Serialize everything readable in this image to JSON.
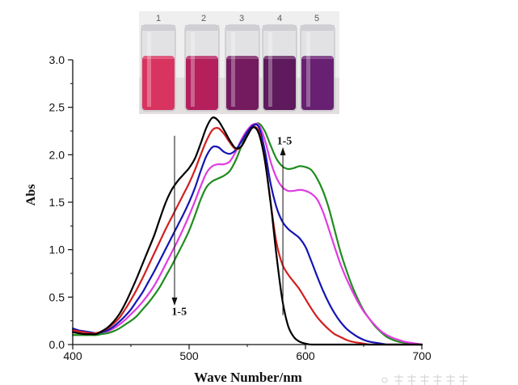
{
  "inset": {
    "vials": [
      {
        "label": "1",
        "liquid_color": "#d8345f"
      },
      {
        "label": "2",
        "liquid_color": "#b41f5c"
      },
      {
        "label": "3",
        "liquid_color": "#741a5e"
      },
      {
        "label": "4",
        "liquid_color": "#5e1a5c"
      },
      {
        "label": "5",
        "liquid_color": "#682072"
      }
    ]
  },
  "chart_data": {
    "type": "line",
    "xlabel": "Wave Number/nm",
    "ylabel": "Abs",
    "xlim": [
      400,
      700
    ],
    "ylim": [
      0,
      3.0
    ],
    "xticks": [
      "400",
      "500",
      "600",
      "700"
    ],
    "yticks": [
      "0.0",
      "0.5",
      "1.0",
      "1.5",
      "2.0",
      "2.5",
      "3.0"
    ],
    "grid": false,
    "x": [
      400,
      405,
      410,
      415,
      420,
      425,
      430,
      435,
      440,
      445,
      450,
      455,
      460,
      465,
      470,
      475,
      480,
      485,
      490,
      495,
      500,
      505,
      510,
      515,
      520,
      525,
      530,
      535,
      540,
      545,
      550,
      555,
      560,
      565,
      570,
      575,
      580,
      585,
      590,
      595,
      600,
      605,
      610,
      615,
      620,
      625,
      630,
      635,
      640,
      645,
      650,
      655,
      660,
      665,
      670,
      675,
      680,
      685,
      690,
      695,
      700
    ],
    "series": [
      {
        "color": "#000000",
        "values": [
          0.13,
          0.12,
          0.11,
          0.11,
          0.11,
          0.14,
          0.18,
          0.24,
          0.32,
          0.43,
          0.56,
          0.7,
          0.85,
          1.0,
          1.15,
          1.33,
          1.5,
          1.63,
          1.72,
          1.79,
          1.86,
          1.96,
          2.12,
          2.29,
          2.39,
          2.36,
          2.26,
          2.15,
          2.07,
          2.09,
          2.2,
          2.29,
          2.22,
          1.95,
          1.5,
          0.95,
          0.48,
          0.2,
          0.08,
          0.03,
          0.01,
          0,
          0,
          0,
          0,
          0,
          0,
          0,
          0,
          0,
          0,
          0,
          0,
          0,
          0,
          0,
          0,
          0,
          0,
          0,
          0
        ]
      },
      {
        "color": "#d21f1f",
        "values": [
          0.15,
          0.14,
          0.13,
          0.12,
          0.12,
          0.14,
          0.17,
          0.22,
          0.28,
          0.37,
          0.47,
          0.58,
          0.7,
          0.83,
          0.96,
          1.09,
          1.22,
          1.34,
          1.46,
          1.58,
          1.7,
          1.84,
          2.0,
          2.15,
          2.26,
          2.28,
          2.22,
          2.13,
          2.06,
          2.09,
          2.2,
          2.29,
          2.24,
          1.95,
          1.5,
          1.08,
          0.85,
          0.74,
          0.66,
          0.58,
          0.48,
          0.38,
          0.29,
          0.22,
          0.16,
          0.11,
          0.08,
          0.05,
          0.03,
          0.02,
          0.01,
          0,
          0,
          0,
          0,
          0,
          0,
          0,
          0,
          0,
          0
        ]
      },
      {
        "color": "#1414b4",
        "values": [
          0.17,
          0.15,
          0.14,
          0.13,
          0.12,
          0.13,
          0.15,
          0.19,
          0.24,
          0.3,
          0.37,
          0.46,
          0.55,
          0.66,
          0.77,
          0.89,
          1.01,
          1.13,
          1.25,
          1.37,
          1.5,
          1.65,
          1.83,
          1.99,
          2.08,
          2.08,
          2.03,
          2.01,
          2.05,
          2.14,
          2.24,
          2.31,
          2.29,
          2.05,
          1.7,
          1.45,
          1.3,
          1.22,
          1.17,
          1.12,
          1.03,
          0.88,
          0.72,
          0.57,
          0.44,
          0.33,
          0.24,
          0.17,
          0.12,
          0.08,
          0.05,
          0.03,
          0.02,
          0.01,
          0,
          0,
          0,
          0,
          0,
          0,
          0
        ]
      },
      {
        "color": "#e03ce0",
        "values": [
          0.15,
          0.14,
          0.13,
          0.12,
          0.12,
          0.13,
          0.14,
          0.17,
          0.21,
          0.26,
          0.32,
          0.38,
          0.45,
          0.53,
          0.62,
          0.73,
          0.85,
          0.97,
          1.09,
          1.22,
          1.36,
          1.51,
          1.67,
          1.81,
          1.88,
          1.9,
          1.9,
          1.93,
          2.03,
          2.16,
          2.26,
          2.32,
          2.31,
          2.16,
          1.93,
          1.76,
          1.66,
          1.62,
          1.62,
          1.63,
          1.62,
          1.59,
          1.53,
          1.4,
          1.22,
          1.03,
          0.85,
          0.7,
          0.57,
          0.45,
          0.35,
          0.27,
          0.2,
          0.14,
          0.1,
          0.07,
          0.05,
          0.03,
          0.02,
          0.01,
          0
        ]
      },
      {
        "color": "#1f8c1f",
        "values": [
          0.1,
          0.1,
          0.1,
          0.1,
          0.1,
          0.11,
          0.12,
          0.14,
          0.17,
          0.21,
          0.25,
          0.3,
          0.37,
          0.44,
          0.52,
          0.61,
          0.72,
          0.83,
          0.95,
          1.07,
          1.2,
          1.36,
          1.53,
          1.66,
          1.72,
          1.75,
          1.78,
          1.83,
          1.94,
          2.09,
          2.22,
          2.3,
          2.33,
          2.25,
          2.1,
          1.96,
          1.88,
          1.85,
          1.86,
          1.88,
          1.87,
          1.84,
          1.75,
          1.62,
          1.44,
          1.21,
          0.98,
          0.79,
          0.62,
          0.48,
          0.36,
          0.27,
          0.19,
          0.13,
          0.08,
          0.05,
          0.03,
          0.02,
          0.01,
          0,
          0
        ]
      }
    ],
    "annotations": [
      {
        "text": "1-5"
      },
      {
        "text": "1-5"
      }
    ]
  }
}
